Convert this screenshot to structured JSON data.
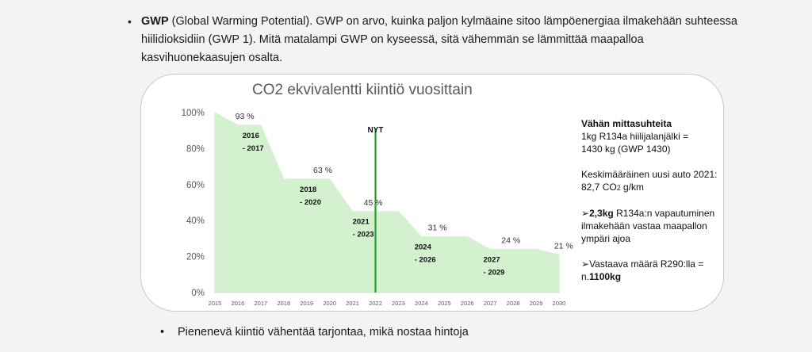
{
  "bullet_top": {
    "term": "GWP",
    "text": " (Global Warming Potential). GWP on arvo, kuinka paljon kylmäaine sitoo lämpöenergiaa ilmakehään suhteessa hiilidioksidiin (GWP 1). Mitä matalampi GWP on kyseessä, sitä vähemmän se lämmittää maapalloa kasvihuonekaasujen osalta."
  },
  "chart_data": {
    "type": "area",
    "title": "CO2 ekvivalentti kiintiö vuosittain",
    "x": [
      2015,
      2016,
      2017,
      2018,
      2019,
      2020,
      2021,
      2022,
      2023,
      2024,
      2025,
      2026,
      2027,
      2028,
      2029,
      2030
    ],
    "y": [
      100,
      93,
      93,
      63,
      63,
      63,
      45,
      45,
      45,
      31,
      31,
      31,
      24,
      24,
      24,
      21
    ],
    "y_ticks": [
      "0%",
      "20%",
      "40%",
      "60%",
      "80%",
      "100%"
    ],
    "ylim": [
      0,
      100
    ],
    "grid": false,
    "fill_color": "#d3f0cf",
    "line_color": "#d3f0cf",
    "marker": {
      "label": "NYT",
      "x": 2022,
      "color": "#2a9a2f"
    },
    "value_labels": [
      {
        "x": 2016.3,
        "y": 93,
        "text": "93 %"
      },
      {
        "x": 2019.7,
        "y": 63,
        "text": "63 %"
      },
      {
        "x": 2021.9,
        "y": 45,
        "text": "45 %"
      },
      {
        "x": 2024.7,
        "y": 31,
        "text": "31 %"
      },
      {
        "x": 2027.9,
        "y": 24,
        "text": "24 %"
      },
      {
        "x": 2030.2,
        "y": 21,
        "text": "21 %"
      }
    ],
    "period_labels": [
      {
        "x": 2016.2,
        "y": 86,
        "line1": "2016",
        "line2": "- 2017"
      },
      {
        "x": 2018.7,
        "y": 56,
        "line1": "2018",
        "line2": "- 2020"
      },
      {
        "x": 2021,
        "y": 38,
        "line1": "2021",
        "line2": "- 2023"
      },
      {
        "x": 2023.7,
        "y": 24,
        "line1": "2024",
        "line2": "- 2026"
      },
      {
        "x": 2026.7,
        "y": 17,
        "line1": "2027",
        "line2": "- 2029"
      }
    ]
  },
  "side_note": {
    "heading": "Vähän mittasuhteita",
    "line1": "1kg R134a hiilijalanjälki =",
    "line2": "1430 kg (GWP 1430)",
    "car_line1": "Keskimääräinen uusi auto 2021:",
    "car_line2a": "82,7 CO",
    "car_line2_sub": "2",
    "car_line2b": " g/km",
    "p3_arrow": "➢",
    "p3_bold": "2,3kg",
    "p3_rest1": " R134a:n vapautuminen",
    "p3_rest2": "ilmakehään vastaa maapallon",
    "p3_rest3": "ympäri ajoa",
    "p4_arrow": "➢",
    "p4_text1": "Vastaava määrä R290:lla =",
    "p4_text2a": "n.",
    "p4_bold": "1100kg"
  },
  "bullet_bottom": {
    "text": "Pienenevä kiintiö vähentää tarjontaa, mikä nostaa hintoja"
  }
}
